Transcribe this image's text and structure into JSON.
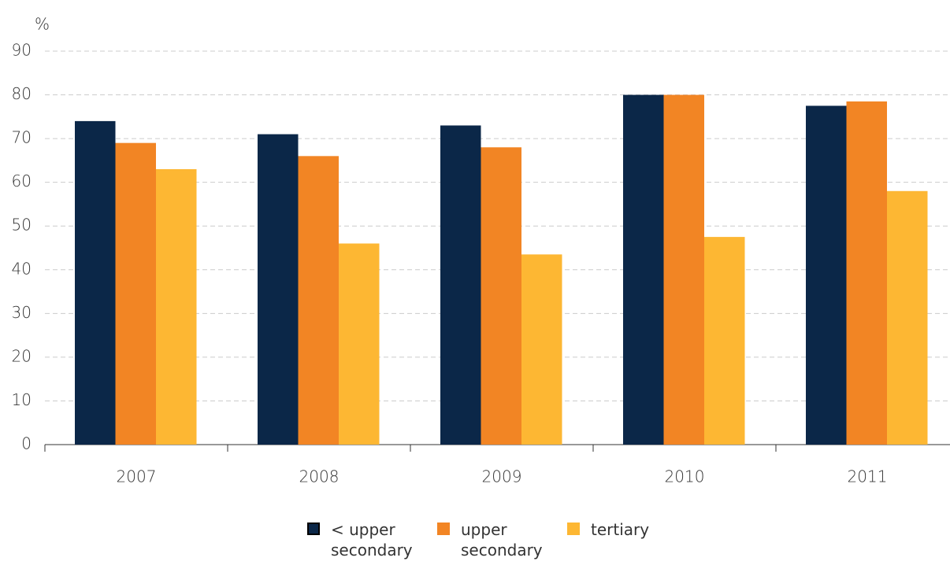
{
  "chart_data": {
    "type": "bar",
    "y_label": "%",
    "categories": [
      "2007",
      "2008",
      "2009",
      "2010",
      "2011"
    ],
    "series": [
      {
        "name": "< upper secondary",
        "color": "#0b2748",
        "values": [
          74,
          71,
          73,
          80,
          77.5
        ]
      },
      {
        "name": "upper secondary",
        "color": "#f28524",
        "values": [
          69,
          66,
          68,
          80,
          78.5
        ]
      },
      {
        "name": "tertiary",
        "color": "#fdb733",
        "values": [
          63,
          46,
          43.5,
          47.5,
          58
        ]
      }
    ],
    "ylim": [
      0,
      90
    ],
    "yticks": [
      0,
      10,
      20,
      30,
      40,
      50,
      60,
      70,
      80,
      90
    ],
    "grid": true,
    "legend": "bottom"
  }
}
